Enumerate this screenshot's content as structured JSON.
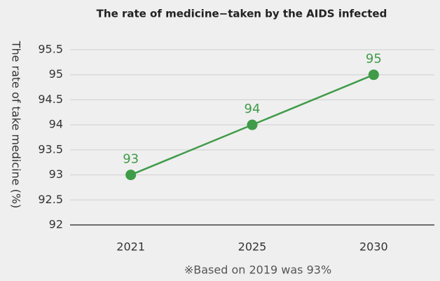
{
  "chart_data": {
    "type": "line",
    "title": "The rate of medicine−taken by the AIDS infected",
    "ylabel": "The rate of take medicine (%)",
    "note": "※Based on 2019 was 93%",
    "categories": [
      "2021",
      "2025",
      "2030"
    ],
    "series": [
      {
        "name": "rate",
        "color": "#3f9b48",
        "values": [
          93,
          94,
          95
        ]
      }
    ],
    "ylim": [
      92,
      95.5
    ],
    "yticks": [
      92,
      92.5,
      93,
      93.5,
      94,
      94.5,
      95,
      95.5
    ],
    "grid": true
  }
}
